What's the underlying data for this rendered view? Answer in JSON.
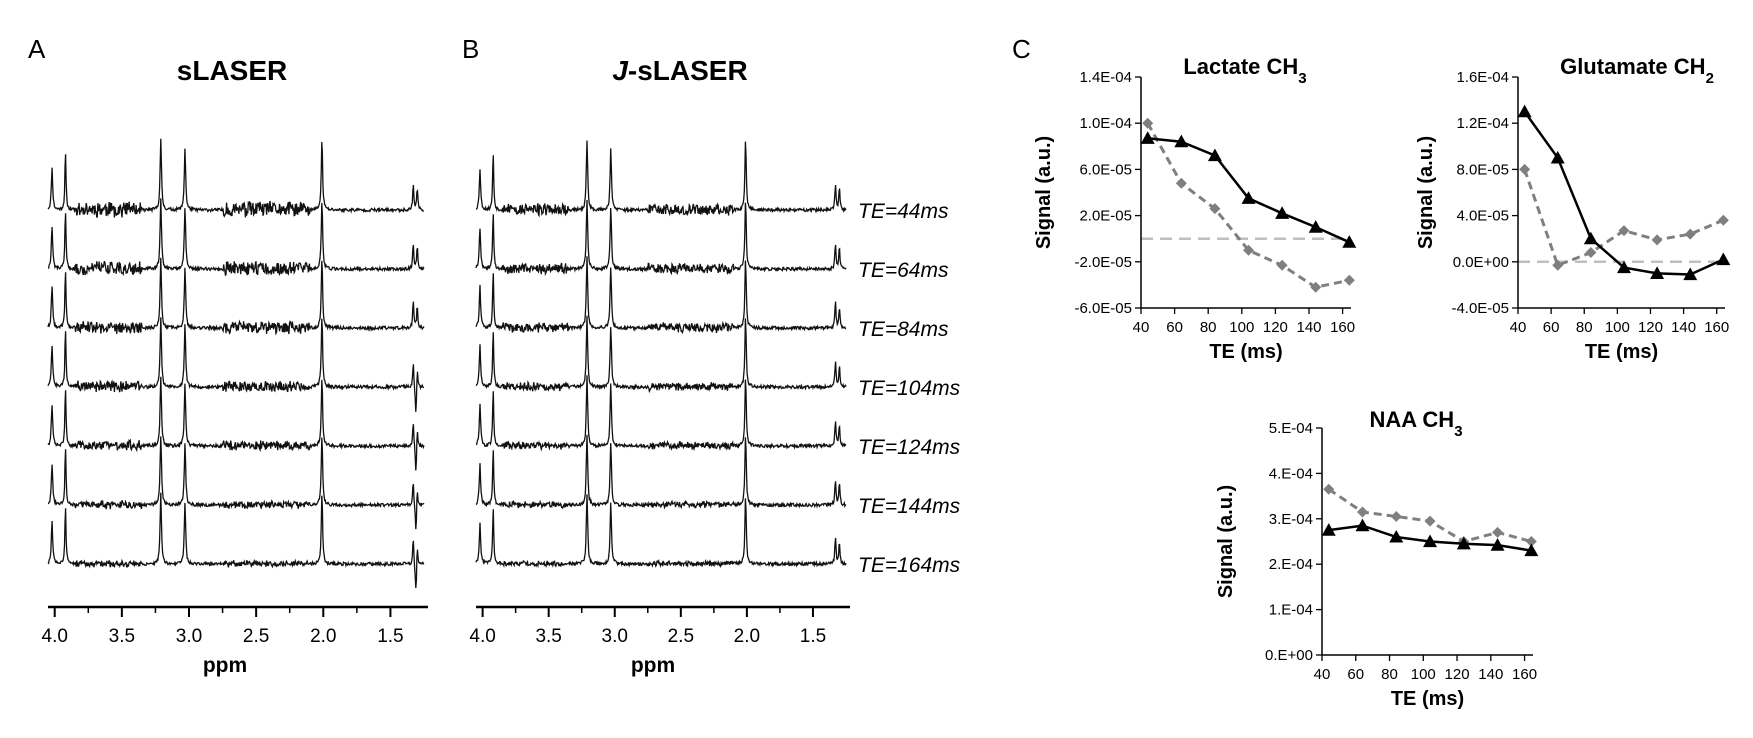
{
  "panels": {
    "a": {
      "letter": "A",
      "title": "sLASER"
    },
    "b": {
      "letter": "B",
      "title_italic": "J",
      "title_rest": "-sLASER"
    },
    "c": {
      "letter": "C"
    }
  },
  "spectra": {
    "xlabel": "ppm",
    "ticks": [
      "4.0",
      "3.5",
      "3.0",
      "2.5",
      "2.0",
      "1.5"
    ],
    "tick_values": [
      4.0,
      3.5,
      3.0,
      2.5,
      2.0,
      1.5
    ],
    "ppm_range": [
      4.05,
      1.25
    ],
    "te_labels": [
      "TE=44ms",
      "TE=64ms",
      "TE=84ms",
      "TE=104ms",
      "TE=124ms",
      "TE=144ms",
      "TE=164ms"
    ]
  },
  "chart_data": [
    {
      "type": "line",
      "title_main": "Lactate CH",
      "title_sub": "3",
      "xlabel": "TE (ms)",
      "ylabel": "Signal (a.u.)",
      "xlim": [
        40,
        165
      ],
      "x_ticks": [
        40,
        60,
        80,
        100,
        120,
        140,
        160
      ],
      "ylim": [
        -6e-05,
        0.00014
      ],
      "y_ticks": [
        "-6.0E-05",
        "-2.0E-05",
        "2.0E-05",
        "6.0E-05",
        "1.0E-04",
        "1.4E-04"
      ],
      "y_tick_values": [
        -6e-05,
        -2e-05,
        2e-05,
        6e-05,
        0.0001,
        0.00014
      ],
      "x": [
        44,
        64,
        84,
        104,
        124,
        144,
        164
      ],
      "series": [
        {
          "style": "solid-triangle",
          "color": "#000000",
          "values": [
            8.7e-05,
            8.4e-05,
            7.2e-05,
            3.5e-05,
            2.2e-05,
            1e-05,
            -3e-06
          ]
        },
        {
          "style": "dashed-diamond",
          "color": "#7f7f7f",
          "values": [
            0.0001,
            4.8e-05,
            2.6e-05,
            -1e-05,
            -2.3e-05,
            -4.2e-05,
            -3.6e-05
          ]
        }
      ],
      "zero_line_color": "#bfbfbf"
    },
    {
      "type": "line",
      "title_main": "Glutamate CH",
      "title_sub": "2",
      "xlabel": "TE (ms)",
      "ylabel": "Signal (a.u.)",
      "xlim": [
        40,
        165
      ],
      "x_ticks": [
        40,
        60,
        80,
        100,
        120,
        140,
        160
      ],
      "ylim": [
        -4e-05,
        0.00016
      ],
      "y_ticks": [
        "-4.0E-05",
        "0.0E+00",
        "4.0E-05",
        "8.0E-05",
        "1.2E-04",
        "1.6E-04"
      ],
      "y_tick_values": [
        -4e-05,
        0,
        4e-05,
        8e-05,
        0.00012,
        0.00016
      ],
      "x": [
        44,
        64,
        84,
        104,
        124,
        144,
        164
      ],
      "series": [
        {
          "style": "solid-triangle",
          "color": "#000000",
          "values": [
            0.00013,
            9e-05,
            2e-05,
            -5e-06,
            -1e-05,
            -1.1e-05,
            2e-06
          ]
        },
        {
          "style": "dashed-diamond",
          "color": "#7f7f7f",
          "values": [
            8e-05,
            -3e-06,
            8e-06,
            2.7e-05,
            1.9e-05,
            2.4e-05,
            3.6e-05
          ]
        }
      ],
      "zero_line_color": "#bfbfbf"
    },
    {
      "type": "line",
      "title_main": "NAA CH",
      "title_sub": "3",
      "xlabel": "TE (ms)",
      "ylabel": "Signal (a.u.)",
      "xlim": [
        40,
        165
      ],
      "x_ticks": [
        40,
        60,
        80,
        100,
        120,
        140,
        160
      ],
      "ylim": [
        0,
        0.0005
      ],
      "y_ticks": [
        "0.E+00",
        "1.E-04",
        "2.E-04",
        "3.E-04",
        "4.E-04",
        "5.E-04"
      ],
      "y_tick_values": [
        0,
        0.0001,
        0.0002,
        0.0003,
        0.0004,
        0.0005
      ],
      "x": [
        44,
        64,
        84,
        104,
        124,
        144,
        164
      ],
      "series": [
        {
          "style": "solid-triangle",
          "color": "#000000",
          "values": [
            0.000275,
            0.000285,
            0.00026,
            0.00025,
            0.000245,
            0.000242,
            0.00023
          ]
        },
        {
          "style": "dashed-diamond",
          "color": "#7f7f7f",
          "values": [
            0.000365,
            0.000315,
            0.000305,
            0.000295,
            0.00025,
            0.00027,
            0.00025
          ]
        }
      ]
    }
  ]
}
